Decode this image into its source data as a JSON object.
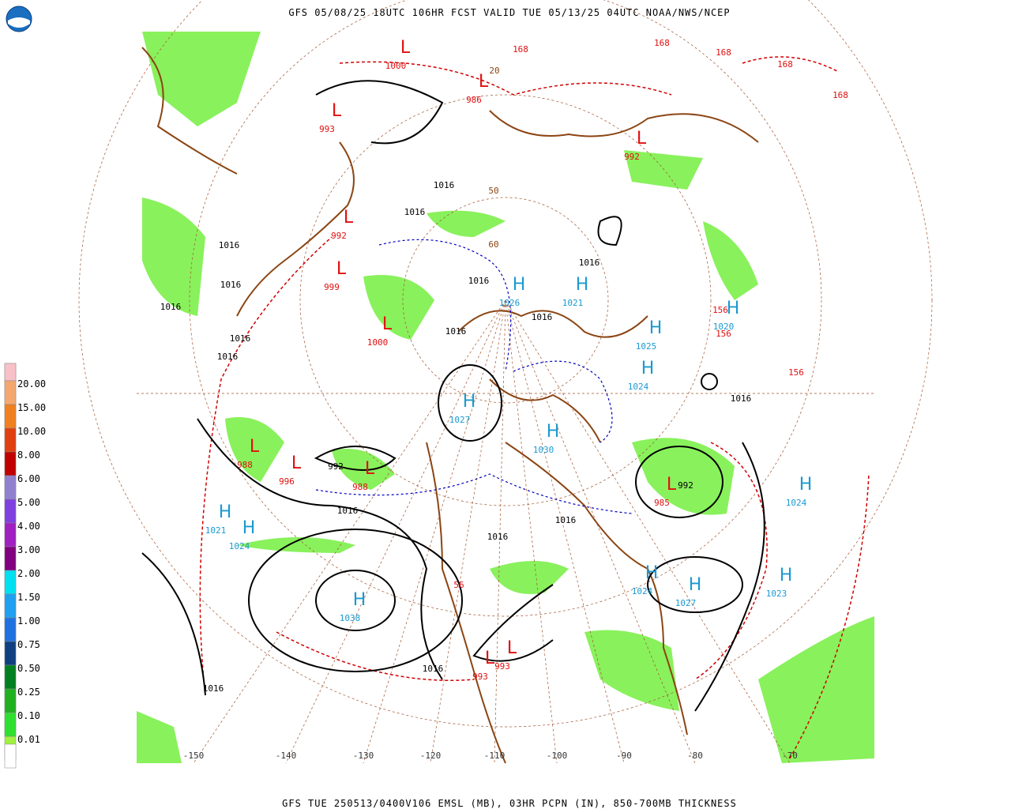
{
  "header": {
    "title": "GFS 05/08/25 18UTC 106HR FCST VALID TUE 05/13/25 04UTC NOAA/NWS/NCEP"
  },
  "footer": {
    "caption": "GFS TUE 250513/0400V106 EMSL (MB), 03HR PCPN (IN), 850-700MB THICKNESS"
  },
  "legend": {
    "items": [
      {
        "label": "20.00",
        "color": "#f8c0c8"
      },
      {
        "label": "15.00",
        "color": "#f4a870"
      },
      {
        "label": "10.00",
        "color": "#f08020"
      },
      {
        "label": "8.00",
        "color": "#e04010"
      },
      {
        "label": "6.00",
        "color": "#c00000"
      },
      {
        "label": "5.00",
        "color": "#9080d0"
      },
      {
        "label": "4.00",
        "color": "#8040e0"
      },
      {
        "label": "3.00",
        "color": "#a020c0"
      },
      {
        "label": "2.00",
        "color": "#800080"
      },
      {
        "label": "1.50",
        "color": "#00e0f0"
      },
      {
        "label": "1.00",
        "color": "#20a0f0"
      },
      {
        "label": "0.75",
        "color": "#2070e0"
      },
      {
        "label": "0.50",
        "color": "#104080"
      },
      {
        "label": "0.25",
        "color": "#008020"
      },
      {
        "label": "0.10",
        "color": "#20b020"
      },
      {
        "label": "0.01",
        "color": "#30e030"
      }
    ],
    "top_color": "#f8c0d0",
    "base_color": "#a0f040"
  },
  "systems": [
    {
      "kind": "H",
      "value": 1027
    },
    {
      "kind": "H",
      "value": 1038
    },
    {
      "kind": "H",
      "value": 1021
    },
    {
      "kind": "H",
      "value": 1024
    },
    {
      "kind": "H",
      "value": 1026
    },
    {
      "kind": "H",
      "value": 1021
    },
    {
      "kind": "H",
      "value": 1025
    },
    {
      "kind": "H",
      "value": 1024
    },
    {
      "kind": "H",
      "value": 1020
    },
    {
      "kind": "H",
      "value": 1024
    },
    {
      "kind": "H",
      "value": 1023
    },
    {
      "kind": "H",
      "value": 1027
    },
    {
      "kind": "H",
      "value": 1024
    },
    {
      "kind": "H",
      "value": 1030
    },
    {
      "kind": "L",
      "value": 985
    },
    {
      "kind": "L",
      "value": 996
    },
    {
      "kind": "L",
      "value": 988
    },
    {
      "kind": "L",
      "value": 988
    },
    {
      "kind": "L",
      "value": 1000
    },
    {
      "kind": "L",
      "value": 999
    },
    {
      "kind": "L",
      "value": 992
    },
    {
      "kind": "L",
      "value": 993
    },
    {
      "kind": "L",
      "value": 1000
    },
    {
      "kind": "L",
      "value": 986
    },
    {
      "kind": "L",
      "value": 992
    },
    {
      "kind": "L",
      "value": 993
    },
    {
      "kind": "L",
      "value": 993
    }
  ],
  "isobar_labels": [
    1016,
    1016,
    1016,
    1016,
    1016,
    1016,
    1016,
    1016,
    1016,
    1016,
    1016,
    1016,
    992,
    992,
    1016,
    1016,
    1016,
    1016,
    1016
  ],
  "thickness_labels": [
    168,
    168,
    168,
    168,
    168,
    156,
    156,
    156,
    56
  ],
  "latitude_labels": [
    20,
    50,
    60
  ],
  "longitude_labels": [
    -150,
    -140,
    -130,
    -120,
    -110,
    -100,
    -90,
    -80,
    -70
  ]
}
